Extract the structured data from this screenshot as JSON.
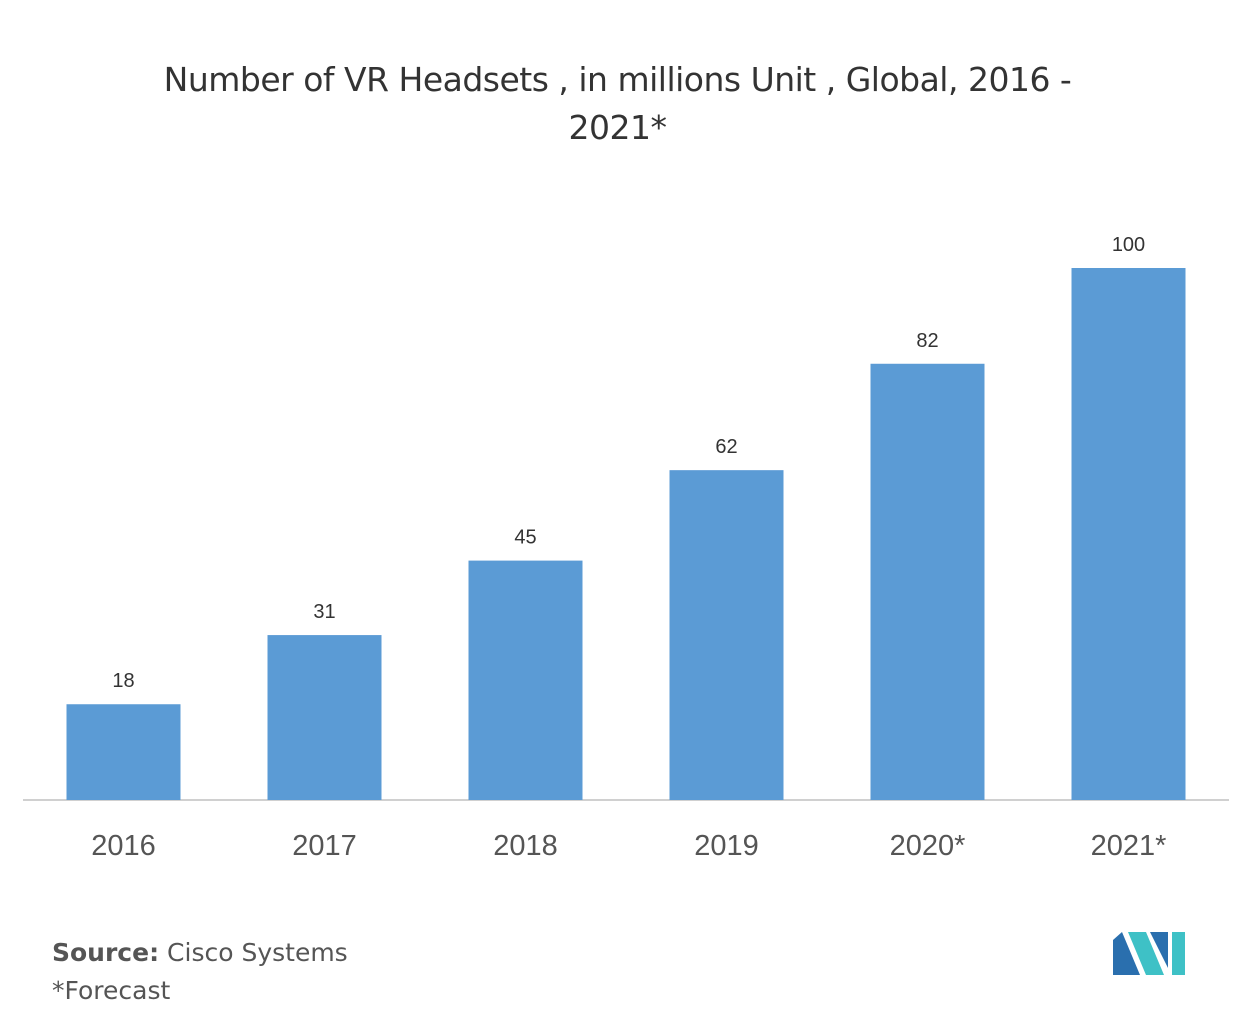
{
  "chart_data": {
    "type": "bar",
    "title": "Number of VR Headsets , in millions Unit , Global, 2016 - 2021*",
    "categories": [
      "2016",
      "2017",
      "2018",
      "2019",
      "2020*",
      "2021*"
    ],
    "values": [
      18,
      31,
      45,
      62,
      82,
      100
    ],
    "color": "#5b9bd5",
    "source_label": "Source:",
    "source": "Cisco Systems",
    "note": "*Forecast"
  }
}
